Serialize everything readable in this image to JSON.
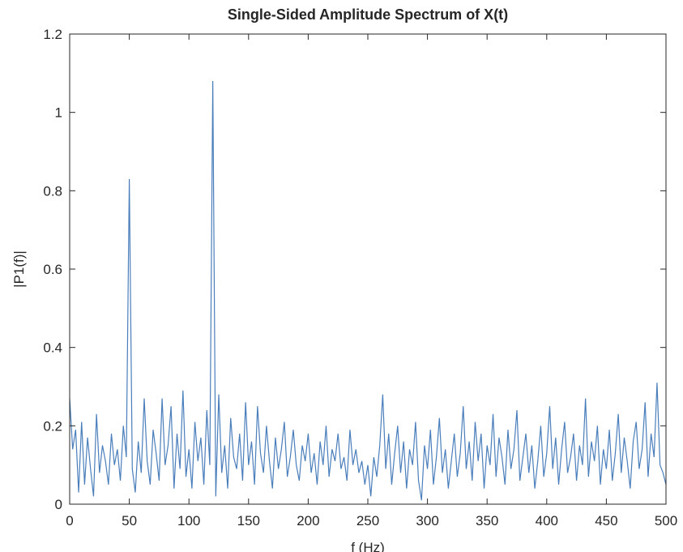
{
  "chart_data": {
    "type": "line",
    "title": "Single-Sided Amplitude Spectrum of X(t)",
    "xlabel": "f (Hz)",
    "ylabel": "|P1(f)|",
    "color": "#4a7ebb",
    "x": [
      0,
      2.5,
      5,
      7.5,
      10,
      12.5,
      15,
      17.5,
      20,
      22.5,
      25,
      27.5,
      30,
      32.5,
      35,
      37.5,
      40,
      42.5,
      45,
      47.5,
      50,
      52.5,
      55,
      57.5,
      60,
      62.5,
      65,
      67.5,
      70,
      72.5,
      75,
      77.5,
      80,
      82.5,
      85,
      87.5,
      90,
      92.5,
      95,
      97.5,
      100,
      102.5,
      105,
      107.5,
      110,
      112.5,
      115,
      117.5,
      120,
      122.5,
      125,
      127.5,
      130,
      132.5,
      135,
      137.5,
      140,
      142.5,
      145,
      147.5,
      150,
      152.5,
      155,
      157.5,
      160,
      162.5,
      165,
      167.5,
      170,
      172.5,
      175,
      177.5,
      180,
      182.5,
      185,
      187.5,
      190,
      192.5,
      195,
      197.5,
      200,
      202.5,
      205,
      207.5,
      210,
      212.5,
      215,
      217.5,
      220,
      222.5,
      225,
      227.5,
      230,
      232.5,
      235,
      237.5,
      240,
      242.5,
      245,
      247.5,
      250,
      252.5,
      255,
      257.5,
      260,
      262.5,
      265,
      267.5,
      270,
      272.5,
      275,
      277.5,
      280,
      282.5,
      285,
      287.5,
      290,
      292.5,
      295,
      297.5,
      300,
      302.5,
      305,
      307.5,
      310,
      312.5,
      315,
      317.5,
      320,
      322.5,
      325,
      327.5,
      330,
      332.5,
      335,
      337.5,
      340,
      342.5,
      345,
      347.5,
      350,
      352.5,
      355,
      357.5,
      360,
      362.5,
      365,
      367.5,
      370,
      372.5,
      375,
      377.5,
      380,
      382.5,
      385,
      387.5,
      390,
      392.5,
      395,
      397.5,
      400,
      402.5,
      405,
      407.5,
      410,
      412.5,
      415,
      417.5,
      420,
      422.5,
      425,
      427.5,
      430,
      432.5,
      435,
      437.5,
      440,
      442.5,
      445,
      447.5,
      450,
      452.5,
      455,
      457.5,
      460,
      462.5,
      465,
      467.5,
      470,
      472.5,
      475,
      477.5,
      480,
      482.5,
      485,
      487.5,
      490,
      492.5,
      495,
      497.5,
      500
    ],
    "values": [
      0.27,
      0.14,
      0.19,
      0.03,
      0.21,
      0.05,
      0.17,
      0.09,
      0.02,
      0.23,
      0.08,
      0.15,
      0.11,
      0.05,
      0.18,
      0.1,
      0.14,
      0.06,
      0.2,
      0.12,
      0.83,
      0.09,
      0.03,
      0.16,
      0.08,
      0.27,
      0.11,
      0.05,
      0.19,
      0.13,
      0.06,
      0.27,
      0.1,
      0.15,
      0.25,
      0.04,
      0.18,
      0.09,
      0.29,
      0.07,
      0.14,
      0.04,
      0.21,
      0.11,
      0.17,
      0.05,
      0.24,
      0.1,
      1.08,
      0.02,
      0.28,
      0.08,
      0.15,
      0.04,
      0.22,
      0.12,
      0.09,
      0.18,
      0.06,
      0.26,
      0.1,
      0.16,
      0.05,
      0.25,
      0.13,
      0.08,
      0.2,
      0.11,
      0.04,
      0.17,
      0.09,
      0.14,
      0.21,
      0.07,
      0.12,
      0.19,
      0.1,
      0.06,
      0.15,
      0.11,
      0.18,
      0.08,
      0.13,
      0.05,
      0.16,
      0.1,
      0.2,
      0.07,
      0.14,
      0.11,
      0.18,
      0.09,
      0.12,
      0.06,
      0.19,
      0.1,
      0.14,
      0.08,
      0.11,
      0.05,
      0.1,
      0.02,
      0.12,
      0.07,
      0.15,
      0.28,
      0.09,
      0.18,
      0.05,
      0.13,
      0.2,
      0.08,
      0.16,
      0.04,
      0.14,
      0.1,
      0.21,
      0.06,
      0.01,
      0.15,
      0.09,
      0.19,
      0.05,
      0.12,
      0.22,
      0.08,
      0.14,
      0.04,
      0.11,
      0.18,
      0.07,
      0.13,
      0.25,
      0.09,
      0.16,
      0.06,
      0.21,
      0.11,
      0.18,
      0.04,
      0.15,
      0.1,
      0.23,
      0.07,
      0.17,
      0.12,
      0.05,
      0.19,
      0.09,
      0.14,
      0.24,
      0.06,
      0.12,
      0.18,
      0.08,
      0.15,
      0.04,
      0.11,
      0.2,
      0.07,
      0.13,
      0.25,
      0.09,
      0.17,
      0.05,
      0.14,
      0.21,
      0.08,
      0.12,
      0.18,
      0.06,
      0.15,
      0.1,
      0.27,
      0.07,
      0.16,
      0.11,
      0.2,
      0.05,
      0.14,
      0.09,
      0.19,
      0.06,
      0.13,
      0.23,
      0.08,
      0.17,
      0.11,
      0.04,
      0.16,
      0.21,
      0.09,
      0.14,
      0.26,
      0.07,
      0.18,
      0.12,
      0.31,
      0.1,
      0.08,
      0.05
    ],
    "xlim": [
      0,
      500
    ],
    "xticks": [
      0,
      50,
      100,
      150,
      200,
      250,
      300,
      350,
      400,
      450,
      500
    ],
    "ylim": [
      0,
      1.2
    ],
    "yticks": [
      0,
      0.2,
      0.4,
      0.6,
      0.8,
      1,
      1.2
    ]
  }
}
